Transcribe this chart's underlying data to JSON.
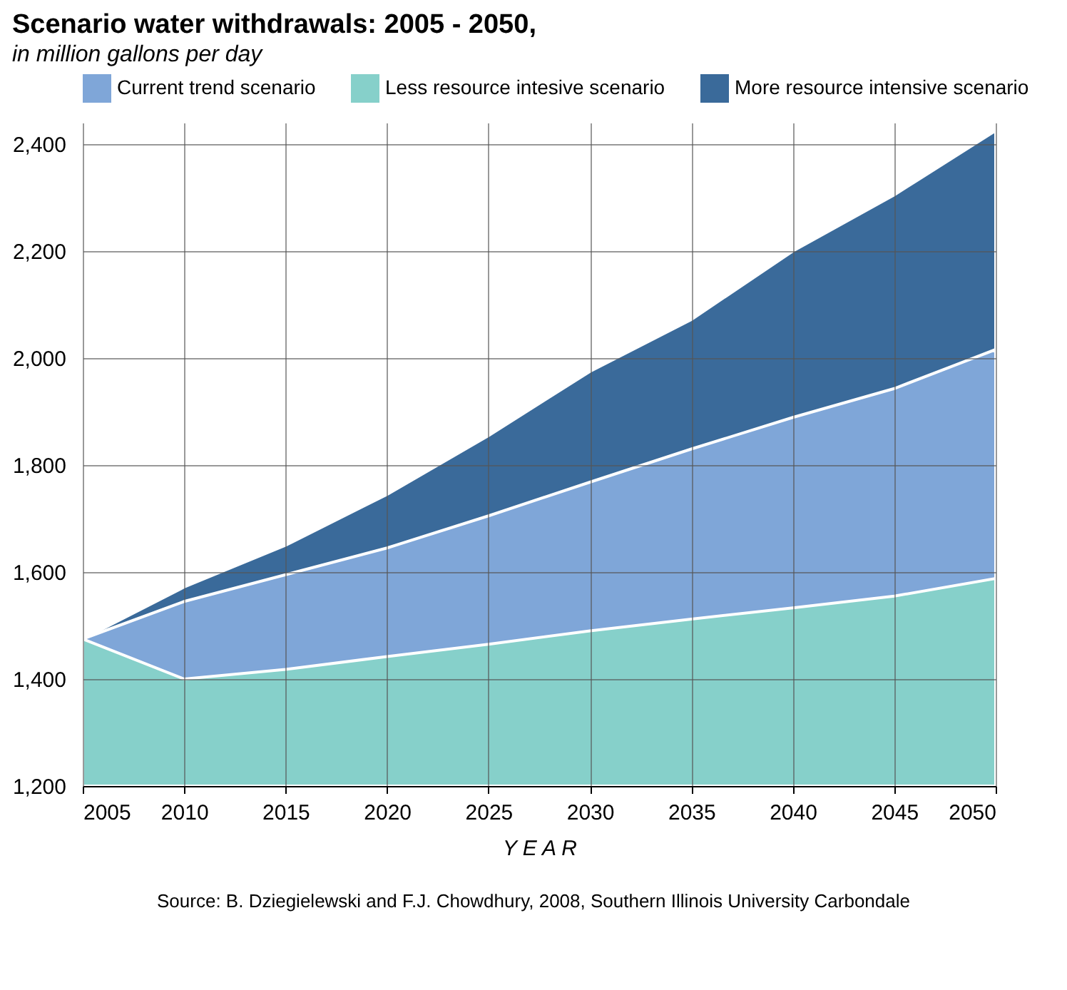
{
  "chart_data": {
    "type": "area",
    "title": "Scenario water withdrawals: 2005 - 2050,",
    "subtitle": "in million gallons per day",
    "xlabel": "Y E A R",
    "x": [
      2005,
      2010,
      2015,
      2020,
      2025,
      2030,
      2035,
      2040,
      2045,
      2050
    ],
    "series": [
      {
        "name": "Current trend scenario",
        "color": "#7fa6d8",
        "values": [
          1475,
          1545,
          1595,
          1645,
          1705,
          1768,
          1830,
          1889,
          1943,
          2016
        ]
      },
      {
        "name": "Less resource intesive scenario",
        "color": "#86d0ca",
        "values": [
          1475,
          1400,
          1418,
          1442,
          1465,
          1490,
          1512,
          1533,
          1555,
          1588
        ]
      },
      {
        "name": "More resource intensive scenario",
        "color": "#3a6a9a",
        "values": [
          1475,
          1572,
          1650,
          1745,
          1855,
          1975,
          2072,
          2200,
          2305,
          2425
        ]
      }
    ],
    "xlim": [
      2005,
      2050
    ],
    "xticks": [
      2005,
      2010,
      2015,
      2020,
      2025,
      2030,
      2035,
      2040,
      2045,
      2050
    ],
    "ylim": [
      1200,
      2440
    ],
    "yticks": [
      {
        "value": 1200,
        "label": "1,200"
      },
      {
        "value": 1400,
        "label": "1,400"
      },
      {
        "value": 1600,
        "label": "1,600"
      },
      {
        "value": 1800,
        "label": "1,800"
      },
      {
        "value": 2000,
        "label": "2,000"
      },
      {
        "value": 2200,
        "label": "2,200"
      },
      {
        "value": 2400,
        "label": "2,400"
      }
    ],
    "grid": true,
    "legend": "top",
    "annotations": [
      "Source: B. Dziegielewski and F.J. Chowdhury, 2008, Southern Illinois University Carbondale"
    ]
  }
}
